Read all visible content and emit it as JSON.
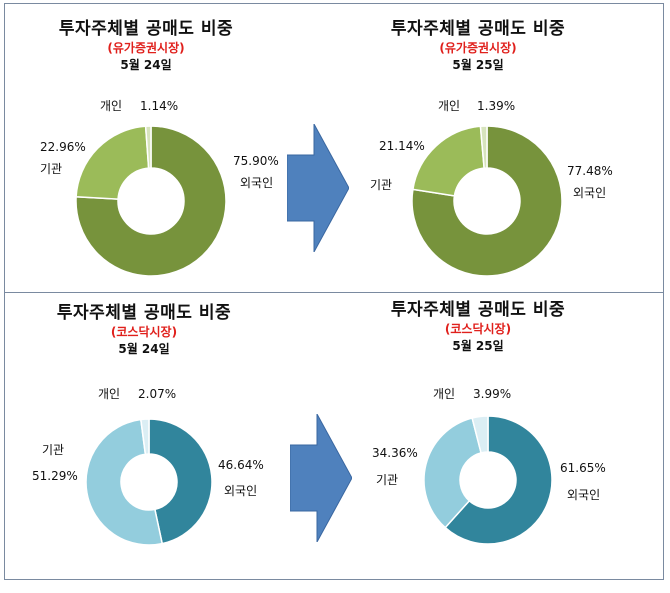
{
  "chart_data": [
    {
      "type": "pie",
      "title": "투자주체별 공매도 비중",
      "subtitle": "(유가증권시장)",
      "date": "5월 24일",
      "slices": [
        {
          "label": "외국인",
          "value": 75.9,
          "value_label": "75.90%",
          "color": "#77933c"
        },
        {
          "label": "기관",
          "value": 22.96,
          "value_label": "22.96%",
          "color": "#9bbb59"
        },
        {
          "label": "개인",
          "value": 1.14,
          "value_label": "1.14%",
          "color": "#d7e4bd"
        }
      ]
    },
    {
      "type": "pie",
      "title": "투자주체별 공매도 비중",
      "subtitle": "(유가증권시장)",
      "date": "5월 25일",
      "slices": [
        {
          "label": "외국인",
          "value": 77.48,
          "value_label": "77.48%",
          "color": "#77933c"
        },
        {
          "label": "기관",
          "value": 21.14,
          "value_label": "21.14%",
          "color": "#9bbb59"
        },
        {
          "label": "개인",
          "value": 1.39,
          "value_label": "1.39%",
          "color": "#d7e4bd"
        }
      ]
    },
    {
      "type": "pie",
      "title": "투자주체별 공매도 비중",
      "subtitle": "(코스닥시장)",
      "date": "5월 24일",
      "slices": [
        {
          "label": "외국인",
          "value": 46.64,
          "value_label": "46.64%",
          "color": "#31859c"
        },
        {
          "label": "기관",
          "value": 51.29,
          "value_label": "51.29%",
          "color": "#93cddd"
        },
        {
          "label": "개인",
          "value": 2.07,
          "value_label": "2.07%",
          "color": "#dbeef4"
        }
      ]
    },
    {
      "type": "pie",
      "title": "투자주체별 공매도 비중",
      "subtitle": "(코스닥시장)",
      "date": "5월 25일",
      "slices": [
        {
          "label": "외국인",
          "value": 61.65,
          "value_label": "61.65%",
          "color": "#31859c"
        },
        {
          "label": "기관",
          "value": 34.36,
          "value_label": "34.36%",
          "color": "#93cddd"
        },
        {
          "label": "개인",
          "value": 3.99,
          "value_label": "3.99%",
          "color": "#dbeef4"
        }
      ]
    }
  ],
  "colors": {
    "arrow": "#4f81bd",
    "market_text": "#e0201c",
    "panel_border": "#7a8aa0"
  }
}
